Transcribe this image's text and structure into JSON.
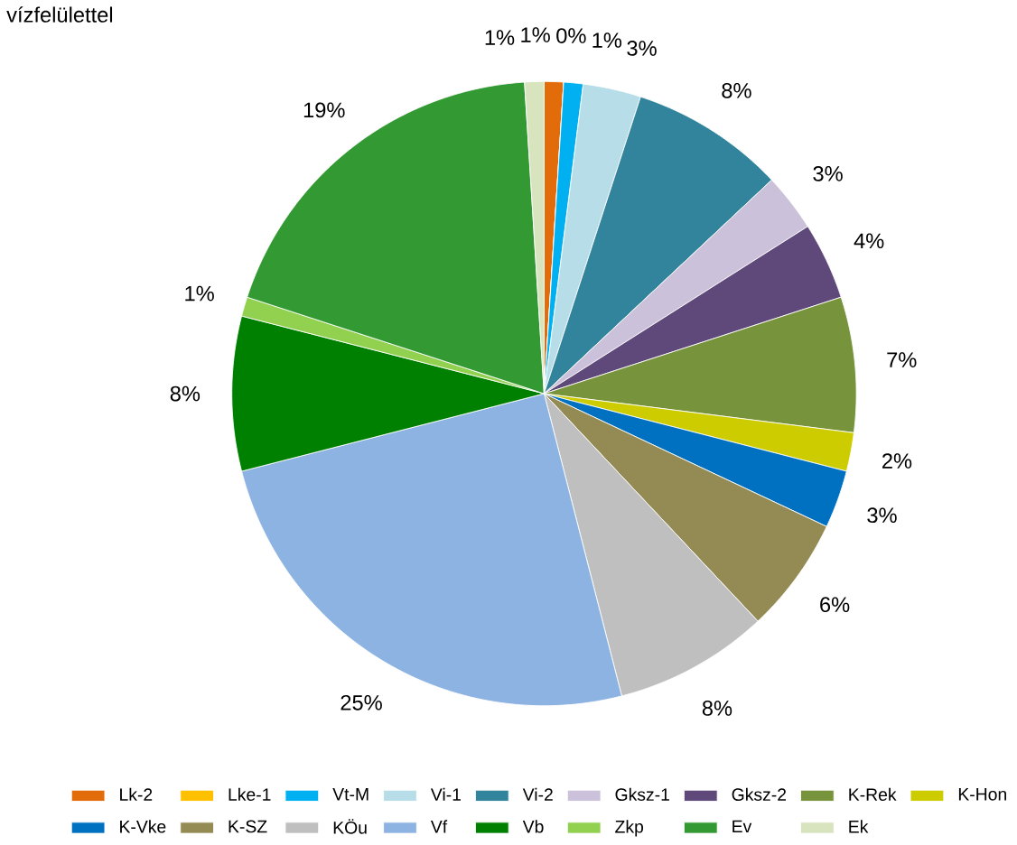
{
  "chart_data": {
    "type": "pie",
    "title": "vízfelülettel",
    "categories": [
      "Lk-2",
      "Lke-1",
      "Vt-M",
      "Vi-1",
      "Vi-2",
      "Gksz-1",
      "Gksz-2",
      "K-Rek",
      "K-Hon",
      "K-Vke",
      "K-SZ",
      "KÖu",
      "Vf",
      "Vb",
      "Zkp",
      "Ev",
      "Ek"
    ],
    "values": [
      1,
      0,
      1,
      3,
      8,
      3,
      4,
      7,
      2,
      3,
      6,
      8,
      25,
      8,
      1,
      19,
      1
    ],
    "value_labels": [
      "1%",
      "0%",
      "1%",
      "3%",
      "8%",
      "3%",
      "4%",
      "7%",
      "2%",
      "3%",
      "6%",
      "8%",
      "25%",
      "8%",
      "1%",
      "19%",
      "1%"
    ],
    "colors": [
      "#e36c0a",
      "#ffc000",
      "#00b0f0",
      "#b7dee8",
      "#31849b",
      "#ccc1da",
      "#5f497a",
      "#77933c",
      "#cccc00",
      "#0070c0",
      "#948a54",
      "#bfbfbf",
      "#8db3e2",
      "#008000",
      "#92d050",
      "#339933",
      "#d7e4bd"
    ],
    "legend": "bottom"
  }
}
